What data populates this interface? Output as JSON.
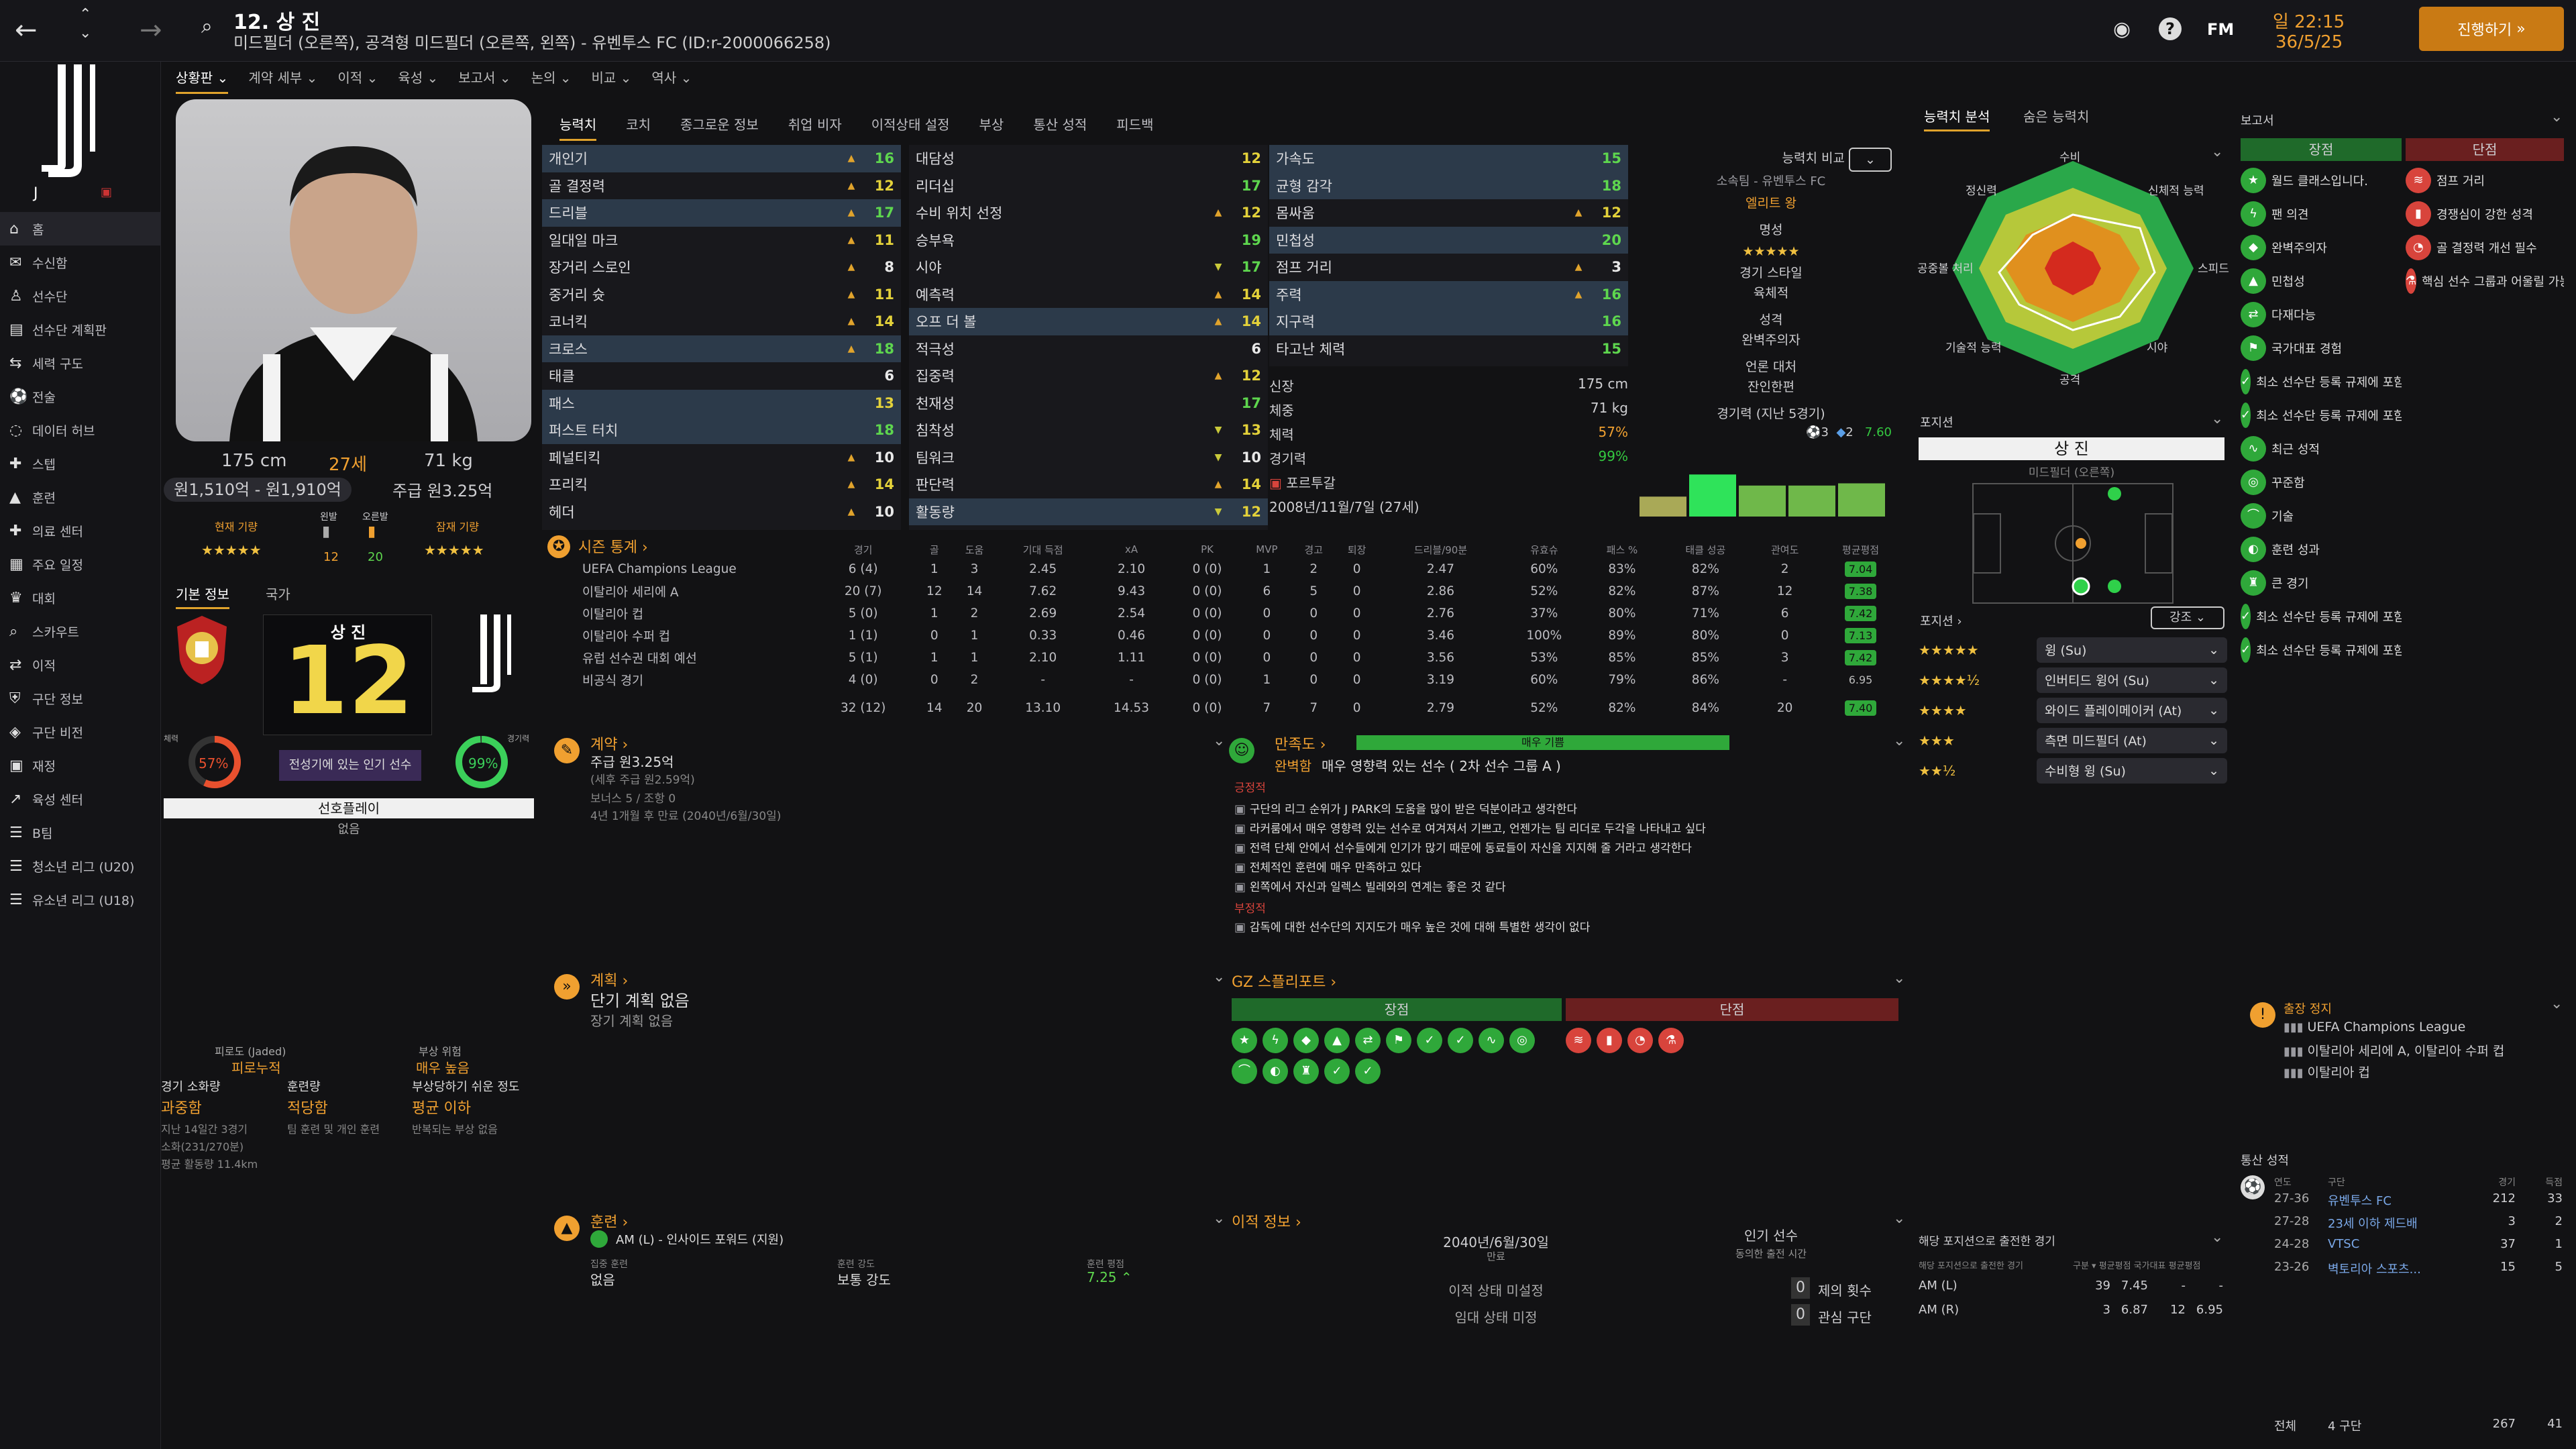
{
  "top": {
    "title": "12. 상 진",
    "subtitle": "미드필더 (오른쪽), 공격형 미드필더 (오른쪽, 왼쪽) - 유벤투스 FC (ID:r-2000066258)",
    "time": "일 22:15",
    "date": "36/5/25",
    "continue": "진행하기",
    "fm": "FM"
  },
  "subnav": [
    "상황판",
    "계약 세부",
    "이적",
    "육성",
    "보고서",
    "논의",
    "비교",
    "역사"
  ],
  "sidebar": [
    "홈",
    "수신함",
    "선수단",
    "선수단 계획판",
    "세력 구도",
    "전술",
    "데이터 허브",
    "스텝",
    "훈련",
    "의료 센터",
    "주요 일정",
    "대회",
    "스카우트",
    "이적",
    "구단 정보",
    "구단 비전",
    "재정",
    "육성 센터",
    "B팀",
    "청소년 리그 (U20)",
    "유소년 리그 (U18)"
  ],
  "player": {
    "height": "175 cm",
    "age": "27세",
    "weight": "71 kg",
    "value": "원1,510억 - 원1,910억",
    "wage": "주급 원3.25억",
    "cur_label": "현재 기량",
    "pot_label": "잠재 기량",
    "left_label": "왼발",
    "right_label": "오른발",
    "left_val": "12",
    "right_val": "20",
    "cur_stars": 5,
    "pot_stars": 5
  },
  "info": {
    "tab1": "기본 정보",
    "tab2": "국가",
    "number": "12",
    "name": "상 진",
    "fame": "전성기에 있는 인기 선수",
    "cond_label": "체력",
    "cond": "57%",
    "fit_label": "경기력",
    "fit": "99%",
    "role": "선호플레이",
    "role2": "없음"
  },
  "attr_tabs": [
    "능력치",
    "코치",
    "종그로운 정보",
    "취업 비자",
    "이적상태 설정",
    "부상",
    "통산 성적",
    "피드백"
  ],
  "tech": [
    [
      "개인기",
      "16",
      "up",
      "vg",
      1
    ],
    [
      "골 결정력",
      "12",
      "up",
      "vy",
      0
    ],
    [
      "드리블",
      "17",
      "up",
      "vg",
      1
    ],
    [
      "일대일 마크",
      "11",
      "up",
      "vy",
      0
    ],
    [
      "장거리 스로인",
      "8",
      "up",
      "vw",
      0
    ],
    [
      "중거리 슛",
      "11",
      "up",
      "vy",
      0
    ],
    [
      "코너킥",
      "14",
      "up",
      "vy",
      0
    ],
    [
      "크로스",
      "18",
      "up",
      "vg",
      1
    ],
    [
      "태클",
      "6",
      "",
      "vw",
      0
    ],
    [
      "패스",
      "13",
      "",
      "vy",
      1
    ],
    [
      "퍼스트 터치",
      "18",
      "",
      "vg",
      1
    ],
    [
      "페널티킥",
      "10",
      "up",
      "vw",
      0
    ],
    [
      "프리킥",
      "14",
      "up",
      "vy",
      0
    ],
    [
      "헤더",
      "10",
      "up",
      "vw",
      0
    ]
  ],
  "ment": [
    [
      "대담성",
      "12",
      "",
      "vy",
      0
    ],
    [
      "리더십",
      "17",
      "",
      "vg",
      0
    ],
    [
      "수비 위치 선정",
      "12",
      "up",
      "vy",
      0
    ],
    [
      "승부욕",
      "19",
      "",
      "vg",
      0
    ],
    [
      "시야",
      "17",
      "dn",
      "vg",
      0
    ],
    [
      "예측력",
      "14",
      "up",
      "vy",
      0
    ],
    [
      "오프 더 볼",
      "14",
      "up",
      "vy",
      1
    ],
    [
      "적극성",
      "6",
      "",
      "vw",
      0
    ],
    [
      "집중력",
      "12",
      "up",
      "vy",
      0
    ],
    [
      "천재성",
      "17",
      "",
      "vg",
      0
    ],
    [
      "침착성",
      "13",
      "dn",
      "vy",
      0
    ],
    [
      "팀워크",
      "10",
      "dn",
      "vw",
      0
    ],
    [
      "판단력",
      "14",
      "up",
      "vy",
      0
    ],
    [
      "활동량",
      "12",
      "dn",
      "vy",
      1
    ]
  ],
  "phys": [
    [
      "가속도",
      "15",
      "",
      "vg",
      1
    ],
    [
      "균형 감각",
      "18",
      "",
      "vg",
      1
    ],
    [
      "몸싸움",
      "12",
      "up",
      "vy",
      0
    ],
    [
      "민첩성",
      "20",
      "",
      "vg",
      1
    ],
    [
      "점프 거리",
      "3",
      "up",
      "vw",
      0
    ],
    [
      "주력",
      "16",
      "up",
      "vg",
      1
    ],
    [
      "지구력",
      "16",
      "",
      "vg",
      1
    ],
    [
      "타고난 체력",
      "15",
      "",
      "vg",
      0
    ]
  ],
  "bio": {
    "height_l": "신장",
    "height": "175 cm",
    "weight_l": "체중",
    "weight": "71 kg",
    "cond_l": "체력",
    "cond": "57%",
    "form_l": "경기력",
    "form": "99%",
    "nation": "포르투갈",
    "dob": "2008년/11월/7일 (27세)"
  },
  "compare": {
    "label": "능력치 비교",
    "club": "소속팀 - 유벤투스 FC",
    "level": "엘리트 왕",
    "fame_l": "명성",
    "style_l": "경기 스타일",
    "style": "육체적",
    "pers_l": "성격",
    "pers": "완벽주의자",
    "media_l": "언론 대처",
    "media": "잔인한편",
    "last5": "경기력 (지난 5경기)",
    "goals": "3",
    "assists": "2",
    "avg": "7.60"
  },
  "last5": [
    0.45,
    0.95,
    0.7,
    0.7,
    0.75
  ],
  "season": {
    "title": "시즌 통계",
    "heads": [
      "경기",
      "골",
      "도움",
      "기대 득점",
      "xA",
      "PK",
      "MVP",
      "경고",
      "퇴장",
      "드리블/90분",
      "유효슈",
      "패스 %",
      "태클 성공",
      "관여도",
      "평균평점"
    ],
    "rows": [
      [
        "UEFA Champions League",
        "6 (4)",
        "1",
        "3",
        "2.45",
        "2.10",
        "0 (0)",
        "1",
        "2",
        "0",
        "2.47",
        "60%",
        "83%",
        "82%",
        "2",
        "7.04"
      ],
      [
        "이탈리아 세리에 A",
        "20 (7)",
        "12",
        "14",
        "7.62",
        "9.43",
        "0 (0)",
        "6",
        "5",
        "0",
        "2.86",
        "52%",
        "82%",
        "87%",
        "12",
        "7.38"
      ],
      [
        "이탈리아 컵",
        "5 (0)",
        "1",
        "2",
        "2.69",
        "2.54",
        "0 (0)",
        "0",
        "0",
        "0",
        "2.76",
        "37%",
        "80%",
        "71%",
        "6",
        "7.42"
      ],
      [
        "이탈리아 수퍼 컵",
        "1 (1)",
        "0",
        "1",
        "0.33",
        "0.46",
        "0 (0)",
        "0",
        "0",
        "0",
        "3.46",
        "100%",
        "89%",
        "80%",
        "0",
        "7.13"
      ],
      [
        "유럽 선수권 대회 예선",
        "5 (1)",
        "1",
        "1",
        "2.10",
        "1.11",
        "0 (0)",
        "0",
        "0",
        "0",
        "3.56",
        "53%",
        "85%",
        "85%",
        "3",
        "7.42"
      ],
      [
        "비공식 경기",
        "4 (0)",
        "0",
        "2",
        "-",
        "-",
        "0 (0)",
        "1",
        "0",
        "0",
        "3.19",
        "60%",
        "79%",
        "86%",
        "-",
        "6.95"
      ]
    ],
    "total": [
      "32 (12)",
      "14",
      "20",
      "13.10",
      "14.53",
      "0 (0)",
      "7",
      "7",
      "0",
      "2.79",
      "52%",
      "82%",
      "84%",
      "20",
      "7.40"
    ]
  },
  "contract": {
    "title": "계약",
    "wage": "주급 원3.25억",
    "wage2": "(세후 주급 원2.59억)",
    "bonus": "보너스 5 / 조항 0",
    "expiry": "4년 1개월 후 만료 (2040년/6월/30일)"
  },
  "happy": {
    "title": "만족도",
    "level": "매우 기쁨",
    "state": "완벽함",
    "desc": "매우 영향력 있는 선수 ( 2차 선수 그룹 A )",
    "pos": "긍정적",
    "neg": "부정적",
    "plus": [
      "구단의 리그 순위가 J PARK의 도움을 많이 받은 덕분이라고 생각한다",
      "라커룸에서 매우 영향력 있는 선수로 여겨져서 기쁘고, 언젠가는 팀 리더로 두각을 나타내고 싶다",
      "전력 단체 안에서 선수들에게 인기가 많기 때문에 동료들이 자신을 지지해 줄 거라고 생각한다",
      "전체적인 훈련에 매우 만족하고 있다",
      "왼쪽에서 자신과 일렉스 빌레와의 연계는 좋은 것 같다"
    ],
    "minus": [
      "감독에 대한 선수단의 지지도가 매우 높은 것에 대해 특별한 생각이 없다"
    ]
  },
  "plan": {
    "title": "계획",
    "line1": "단기 계획 없음",
    "line2": "장기 계획 없음"
  },
  "scout": {
    "title": "GZ 스플리포트",
    "pro": "장점",
    "con": "단점"
  },
  "training": {
    "title": "훈련",
    "role": "AM (L) - 인사이드 포워드 (지원)",
    "focus_l": "집중 훈련",
    "focus": "없음",
    "intensity_l": "훈련 강도",
    "intensity": "보통 강도",
    "rating_l": "훈련 평점",
    "rating": "7.25"
  },
  "transfer": {
    "title": "이적 정보",
    "date": "2040년/6월/30일",
    "expiry_l": "만료",
    "fame": "인기 선수",
    "fame_sub": "동의한 출전 시간",
    "status": "이적 상태 미설정",
    "loan": "임대 상태 미정",
    "offers": "제의 횟수",
    "interest": "관심 구단",
    "offers_v": "0",
    "interest_v": "0"
  },
  "injury": {
    "injury_l": "피로도 (Jaded)",
    "injury": "피로누적",
    "risk_l": "부상 위험",
    "risk": "매우 높음",
    "load_l": "경기 소화량",
    "load": "과중함",
    "train_l": "훈련량",
    "train": "적당함",
    "prone_l": "부상당하기 쉬운 정도",
    "prone": "평균 이하",
    "l1": "지난 14일간 3경기",
    "l2": "소화(231/270분)",
    "l3": "평균 활동량 11.4km",
    "t1": "팀 훈련 및 개인 훈련",
    "p1": "반복되는 부상 없음"
  },
  "radar": {
    "tab1": "능력치 분석",
    "tab2": "숨은 능력치",
    "labels": [
      "수비",
      "신체적 능력",
      "스피드",
      "시야",
      "공격",
      "기술적 능력",
      "공중볼 처리",
      "정신력"
    ]
  },
  "position": {
    "title": "포지션",
    "name": "상 진",
    "sub": "미드필더 (오른쪽)",
    "list_title": "포지션",
    "filter": "강조",
    "roles": [
      [
        "윙 (Su)",
        5
      ],
      [
        "인버티드 윙어 (Su)",
        4.5
      ],
      [
        "와이드 플레이메이커 (At)",
        4
      ],
      [
        "측면 미드필더 (At)",
        3
      ],
      [
        "수비형 윙 (Su)",
        2.5
      ]
    ]
  },
  "played": {
    "title": "해당 포지션으로 출전한 경기",
    "sub": "해당 포지션으로 출전한 경기",
    "rows": [
      [
        "AM (L)",
        "39",
        "7.45",
        "-",
        "-"
      ],
      [
        "AM (R)",
        "3",
        "6.87",
        "12",
        "6.95"
      ]
    ]
  },
  "report": {
    "title": "보고서",
    "pro": "장점",
    "con": "단점",
    "pros": [
      "월드 클래스입니다.",
      "팬 의견",
      "완벽주의자",
      "민첩성",
      "다재다능",
      "국가대표 경험",
      "최소 선수단 등록 규제에 포함(국내)",
      "최소 선수단 등록 규제에 포함(대륙)",
      "최근 성적",
      "꾸준함",
      "기술",
      "훈련 성과",
      "큰 경기",
      "최소 선수단 등록 규제에 포함(국내)",
      "최소 선수단 등록 규제에 포함(대륙)"
    ],
    "cons": [
      "점프 거리",
      "경쟁심이 강한 성격",
      "골 결정력 개선 필수",
      "핵심 선수 그룹과 어울릴 가능성 적음"
    ]
  },
  "ban": {
    "title": "출장 정지",
    "items": [
      "UEFA Champions League",
      "이탈리아 세리에 A, 이탈리아 수퍼 컵",
      "이탈리아 컵"
    ]
  },
  "career": {
    "title": "통산 성적",
    "h": [
      "연도",
      "구단",
      "경기",
      "득점"
    ],
    "rows": [
      [
        "27-36",
        "유벤투스 FC",
        "212",
        "33"
      ],
      [
        "27-28",
        "23세 이하 제드배",
        "3",
        "2"
      ],
      [
        "24-28",
        "VTSC",
        "37",
        "1"
      ],
      [
        "23-26",
        "벽토리아 스포츠...",
        "15",
        "5"
      ]
    ],
    "total_l": "전체",
    "total_c": "4 구단",
    "total_g": "267",
    "total_s": "41"
  }
}
